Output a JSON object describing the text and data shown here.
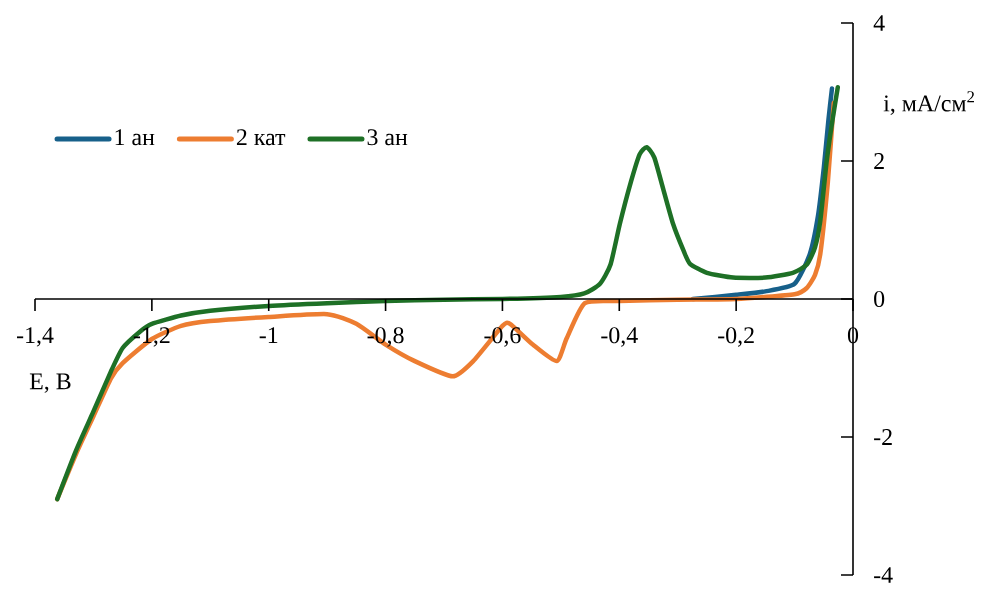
{
  "chart_data": {
    "type": "line",
    "xlabel": "E, B",
    "ylabel": "i, мА/см$^{2}$",
    "xlim": [
      -1.4,
      0
    ],
    "ylim": [
      -4,
      4
    ],
    "xticks": [
      {
        "value": -1.4,
        "label": "-1,4"
      },
      {
        "value": -1.2,
        "label": "-1,2"
      },
      {
        "value": -1,
        "label": "-1"
      },
      {
        "value": -0.8,
        "label": "-0,8"
      },
      {
        "value": -0.6,
        "label": "-0,6"
      },
      {
        "value": -0.4,
        "label": "-0,4"
      },
      {
        "value": -0.2,
        "label": "-0,2"
      },
      {
        "value": 0,
        "label": "0"
      }
    ],
    "yticks": [
      -4,
      -2,
      0,
      2,
      4
    ],
    "legend": "top left",
    "grid": false,
    "marker": "none",
    "line_style": "solid",
    "series": [
      {
        "name": "1 ан",
        "color": "#17608a",
        "x": [
          -0.274,
          -0.2,
          -0.15,
          -0.1,
          -0.074,
          -0.06,
          -0.05,
          -0.042,
          -0.036
        ],
        "values": [
          0,
          0.06,
          0.11,
          0.22,
          0.65,
          1.2,
          1.9,
          2.6,
          3.05
        ]
      },
      {
        "name": "2 кат",
        "color": "#ed7d31",
        "x": [
          -1.362,
          -1.33,
          -1.3,
          -1.27,
          -1.25,
          -1.2,
          -1.15,
          -1.1,
          -1.0,
          -0.9,
          -0.85,
          -0.8,
          -0.75,
          -0.685,
          -0.65,
          -0.6,
          -0.587,
          -0.548,
          -0.507,
          -0.49,
          -0.459,
          -0.4,
          -0.3,
          -0.2,
          -0.1,
          -0.079,
          -0.065,
          -0.056,
          -0.043,
          -0.033
        ],
        "values": [
          -2.9,
          -2.25,
          -1.7,
          -1.15,
          -0.93,
          -0.58,
          -0.39,
          -0.32,
          -0.26,
          -0.22,
          -0.36,
          -0.66,
          -0.9,
          -1.12,
          -0.9,
          -0.39,
          -0.36,
          -0.66,
          -0.9,
          -0.57,
          -0.06,
          -0.03,
          -0.01,
          0,
          0.07,
          0.16,
          0.35,
          0.65,
          1.7,
          2.84
        ]
      },
      {
        "name": "3 ан",
        "color": "#1e7026",
        "x": [
          -1.362,
          -1.33,
          -1.3,
          -1.27,
          -1.25,
          -1.22,
          -1.2,
          -1.15,
          -1.1,
          -1.0,
          -0.9,
          -0.8,
          -0.7,
          -0.6,
          -0.5,
          -0.46,
          -0.433,
          -0.415,
          -0.399,
          -0.38,
          -0.365,
          -0.353,
          -0.34,
          -0.325,
          -0.308,
          -0.29,
          -0.279,
          -0.25,
          -0.205,
          -0.15,
          -0.103,
          -0.079,
          -0.065,
          -0.056,
          -0.045,
          -0.035,
          -0.026
        ],
        "values": [
          -2.9,
          -2.2,
          -1.63,
          -1.05,
          -0.71,
          -0.47,
          -0.36,
          -0.24,
          -0.17,
          -0.1,
          -0.06,
          -0.03,
          -0.01,
          0,
          0.03,
          0.08,
          0.22,
          0.5,
          1.09,
          1.7,
          2.1,
          2.2,
          2.05,
          1.6,
          1.09,
          0.7,
          0.51,
          0.38,
          0.31,
          0.31,
          0.38,
          0.5,
          0.75,
          1.13,
          2.0,
          2.6,
          3.07
        ]
      }
    ]
  }
}
